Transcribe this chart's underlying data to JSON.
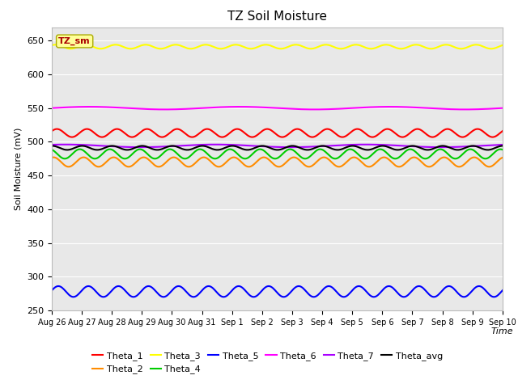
{
  "title": "TZ Soil Moisture",
  "xlabel": "Time",
  "ylabel": "Soil Moisture (mV)",
  "ylim": [
    250,
    670
  ],
  "yticks": [
    250,
    300,
    350,
    400,
    450,
    500,
    550,
    600,
    650
  ],
  "date_labels": [
    "Aug 26",
    "Aug 27",
    "Aug 28",
    "Aug 29",
    "Aug 30",
    "Aug 31",
    "Sep 1",
    "Sep 2",
    "Sep 3",
    "Sep 4",
    "Sep 5",
    "Sep 6",
    "Sep 7",
    "Sep 8",
    "Sep 9",
    "Sep 10"
  ],
  "n_points": 480,
  "series": {
    "Theta_1": {
      "color": "#ff0000",
      "base": 513,
      "amp": 6,
      "freq": 1.0,
      "phase": 0.5
    },
    "Theta_2": {
      "color": "#ff8c00",
      "base": 470,
      "amp": 7,
      "freq": 1.0,
      "phase": 1.2
    },
    "Theta_3": {
      "color": "#ffff00",
      "base": 641,
      "amp": 3,
      "freq": 1.0,
      "phase": 0.8
    },
    "Theta_4": {
      "color": "#00cc00",
      "base": 482,
      "amp": 7,
      "freq": 1.0,
      "phase": 2.0
    },
    "Theta_5": {
      "color": "#0000ff",
      "base": 278,
      "amp": 8,
      "freq": 1.0,
      "phase": 0.2
    },
    "Theta_6": {
      "color": "#ff00ff",
      "base": 550,
      "amp": 2,
      "freq": 0.2,
      "phase": 0.0
    },
    "Theta_7": {
      "color": "#aa00ff",
      "base": 494,
      "amp": 2,
      "freq": 0.2,
      "phase": 1.0
    },
    "Theta_avg": {
      "color": "#000000",
      "base": 491,
      "amp": 3,
      "freq": 1.0,
      "phase": 1.5
    }
  },
  "annotation_text": "TZ_sm",
  "annotation_bg": "#ffff99",
  "annotation_fg": "#aa0000",
  "annotation_edge": "#aaaa00",
  "bg_color": "#e8e8e8",
  "legend_row1": [
    "Theta_1",
    "Theta_2",
    "Theta_3",
    "Theta_4",
    "Theta_5",
    "Theta_6"
  ],
  "legend_row2": [
    "Theta_7",
    "Theta_avg"
  ]
}
